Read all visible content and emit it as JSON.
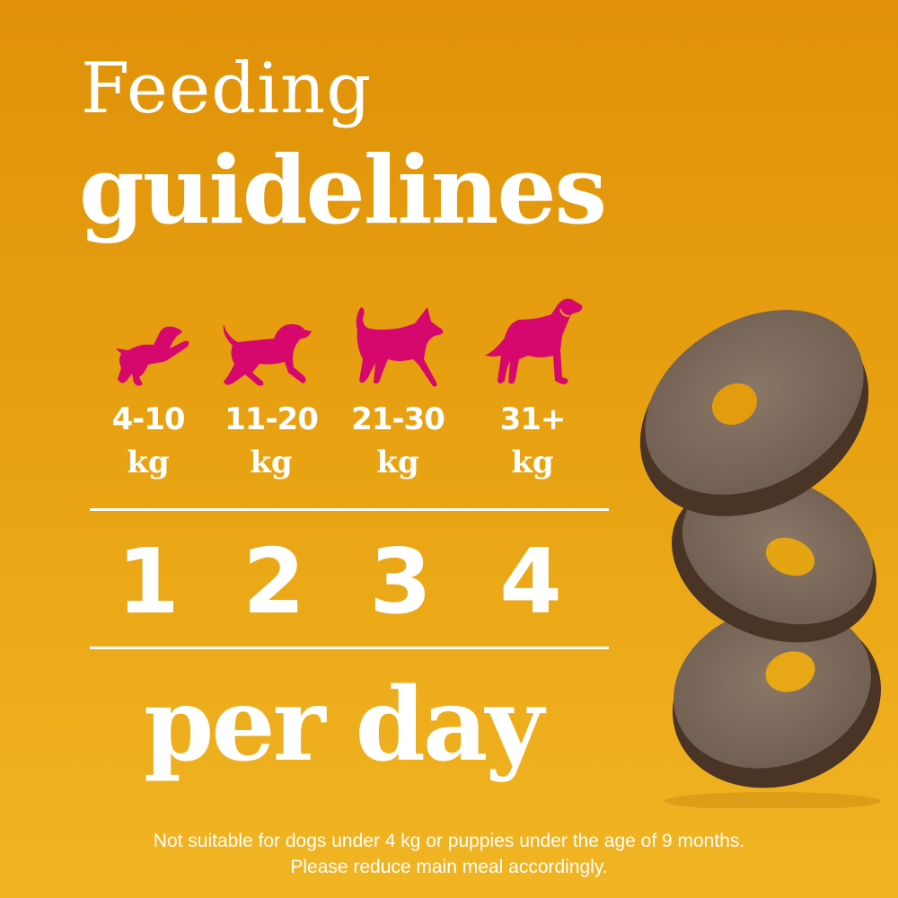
{
  "title": {
    "line1": "Feeding",
    "line2": "guidelines"
  },
  "colors": {
    "background_top": "#e09109",
    "background_bottom": "#f1b523",
    "dog_icon": "#d6086e",
    "text": "#ffffff",
    "treat": "#7d6a5c"
  },
  "sizes": [
    {
      "icon": "puppy-icon",
      "range": "4-10",
      "unit": "kg",
      "amount": "1"
    },
    {
      "icon": "small-dog-icon",
      "range": "11-20",
      "unit": "kg",
      "amount": "2"
    },
    {
      "icon": "medium-dog-icon",
      "range": "21-30",
      "unit": "kg",
      "amount": "3"
    },
    {
      "icon": "large-dog-icon",
      "range": "31+",
      "unit": "kg",
      "amount": "4"
    }
  ],
  "per_day": "per day",
  "footer": {
    "line1": "Not suitable for dogs under 4 kg or puppies under the age of 9 months.",
    "line2": "Please reduce main meal accordingly."
  }
}
